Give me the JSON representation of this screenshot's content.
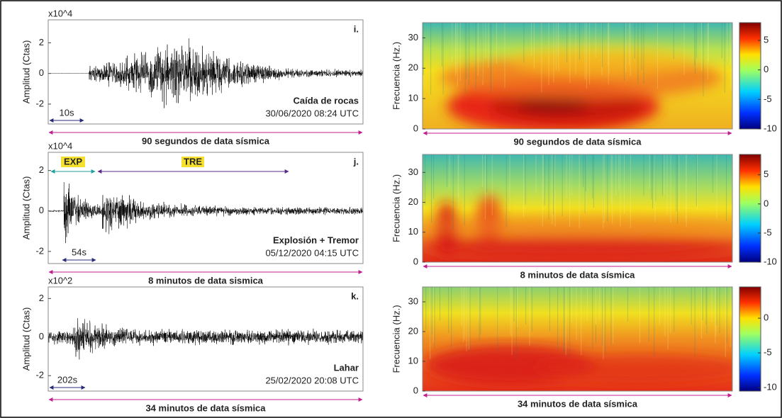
{
  "panels": [
    {
      "amplitude": {
        "label": "i.",
        "y_label": "Amplitud (Ctas)",
        "multiplier": "x10^4",
        "ylim": [
          -3.3,
          3.5
        ],
        "yticks": [
          -2,
          0,
          2
        ],
        "scale_label": "10s",
        "event": "Caída de rocas",
        "datetime": "30/06/2020 08:24 UTC",
        "duration": "90 segundos de data sísmica"
      },
      "spectrogram": {
        "y_label": "Frecuencia (Hz.)",
        "ylim": [
          0,
          35
        ],
        "yticks": [
          0,
          10,
          20,
          30
        ],
        "colorbar_lim": [
          -10,
          8
        ],
        "colorbar_ticks": [
          -10,
          -5,
          0,
          5
        ],
        "duration": "90 segundos de data sísmica"
      }
    },
    {
      "amplitude": {
        "label": "j.",
        "y_label": "Amplitud (Ctas)",
        "multiplier": "x10^4",
        "ylim": [
          -2.6,
          2.9
        ],
        "yticks": [
          -2,
          0,
          2
        ],
        "scale_label": "54s",
        "phases": [
          "EXP",
          "TRE"
        ],
        "event": "Explosión + Tremor",
        "datetime": "05/12/2020 04:15 UTC",
        "duration": "8 minutos de data sismica"
      },
      "spectrogram": {
        "y_label": "Frecuencia (Hz.)",
        "ylim": [
          0,
          36
        ],
        "yticks": [
          0,
          10,
          20,
          30
        ],
        "colorbar_lim": [
          -10,
          8.5
        ],
        "colorbar_ticks": [
          -10,
          -5,
          0,
          5
        ],
        "duration": "8 minutos de data sísmica"
      }
    },
    {
      "amplitude": {
        "label": "k.",
        "y_label": "Amplitud (Ctas)",
        "multiplier": "x10^2",
        "ylim": [
          -2.8,
          2.6
        ],
        "yticks": [
          -2,
          0,
          2
        ],
        "scale_label": "202s",
        "event": "Lahar",
        "datetime": "25/02/2020 20:08 UTC",
        "duration": "34 minutos de data sísmica"
      },
      "spectrogram": {
        "y_label": "Frecuencia (Hz.)",
        "ylim": [
          0,
          35
        ],
        "yticks": [
          0,
          10,
          20,
          30
        ],
        "colorbar_lim": [
          -10.5,
          4.5
        ],
        "colorbar_ticks": [
          -10,
          -5,
          0
        ],
        "duration": "34 minutos de data sísmica"
      }
    }
  ]
}
